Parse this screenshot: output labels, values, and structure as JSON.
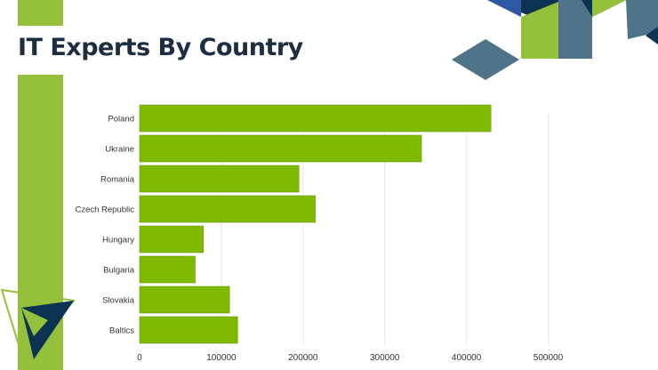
{
  "slide": {
    "title": "IT Experts By Country"
  },
  "colors": {
    "bar": "#7fba00",
    "bar_border": "#6a9e00",
    "accent_green": "#95c03c",
    "navy": "#0d3352",
    "slate": "#4f7389",
    "blue": "#2f57a6",
    "grid": "#e9e9e9"
  },
  "chart_data": {
    "type": "bar",
    "orientation": "horizontal",
    "categories": [
      "Poland",
      "Ukraine",
      "Romania",
      "Czech Republic",
      "Hungary",
      "Bulgaria",
      "Slovakia",
      "Baltics"
    ],
    "values": [
      430000,
      345000,
      195000,
      215000,
      78000,
      68000,
      110000,
      120000
    ],
    "xlim": [
      0,
      580000
    ],
    "xticks": [
      0,
      100000,
      200000,
      300000,
      400000,
      500000
    ],
    "xtick_labels": [
      "0",
      "100000",
      "200000",
      "300000",
      "400000",
      "500000"
    ],
    "grid": true
  }
}
